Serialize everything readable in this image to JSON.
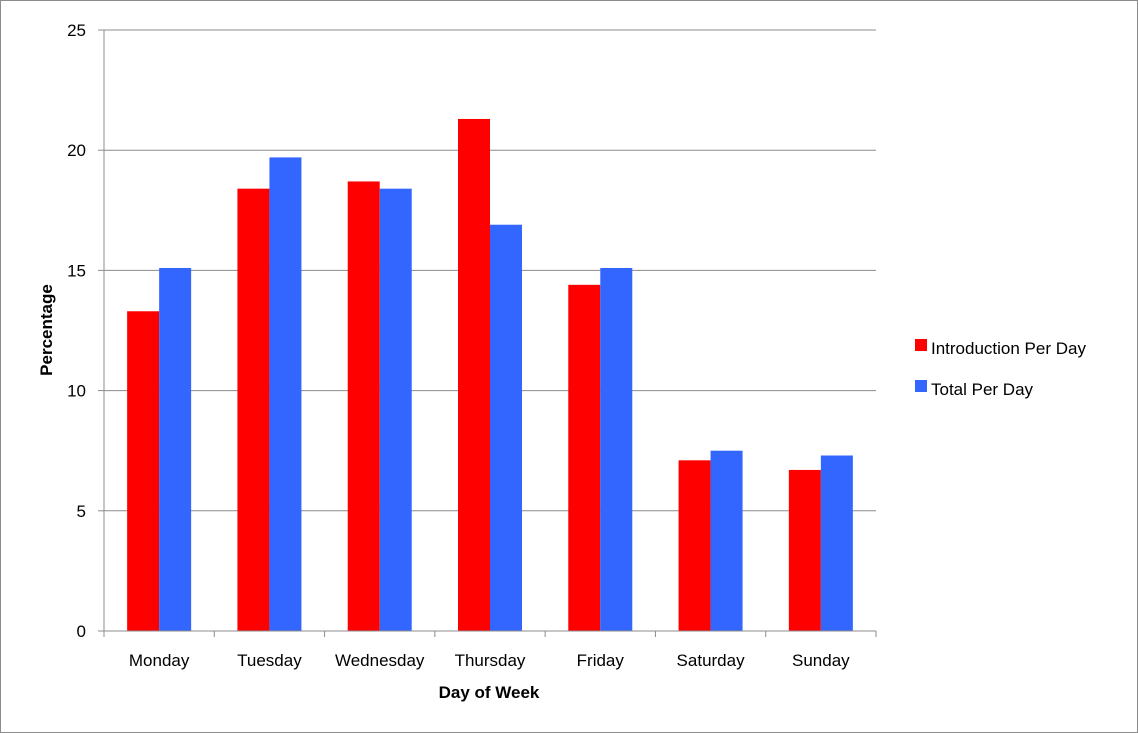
{
  "chart_data": {
    "type": "bar",
    "categories": [
      "Monday",
      "Tuesday",
      "Wednesday",
      "Thursday",
      "Friday",
      "Saturday",
      "Sunday"
    ],
    "series": [
      {
        "name": "Introduction Per Day",
        "color": "#ff0000",
        "values": [
          13.3,
          18.4,
          18.7,
          21.3,
          14.4,
          7.1,
          6.7
        ]
      },
      {
        "name": "Total Per Day",
        "color": "#3366ff",
        "values": [
          15.1,
          19.7,
          18.4,
          16.9,
          15.1,
          7.5,
          7.3
        ]
      }
    ],
    "title": "",
    "xlabel": "Day of Week",
    "ylabel": "Percentage",
    "ylim": [
      0,
      25
    ],
    "yticks": [
      0,
      5,
      10,
      15,
      20,
      25
    ],
    "grid": true,
    "legend_position": "right"
  }
}
